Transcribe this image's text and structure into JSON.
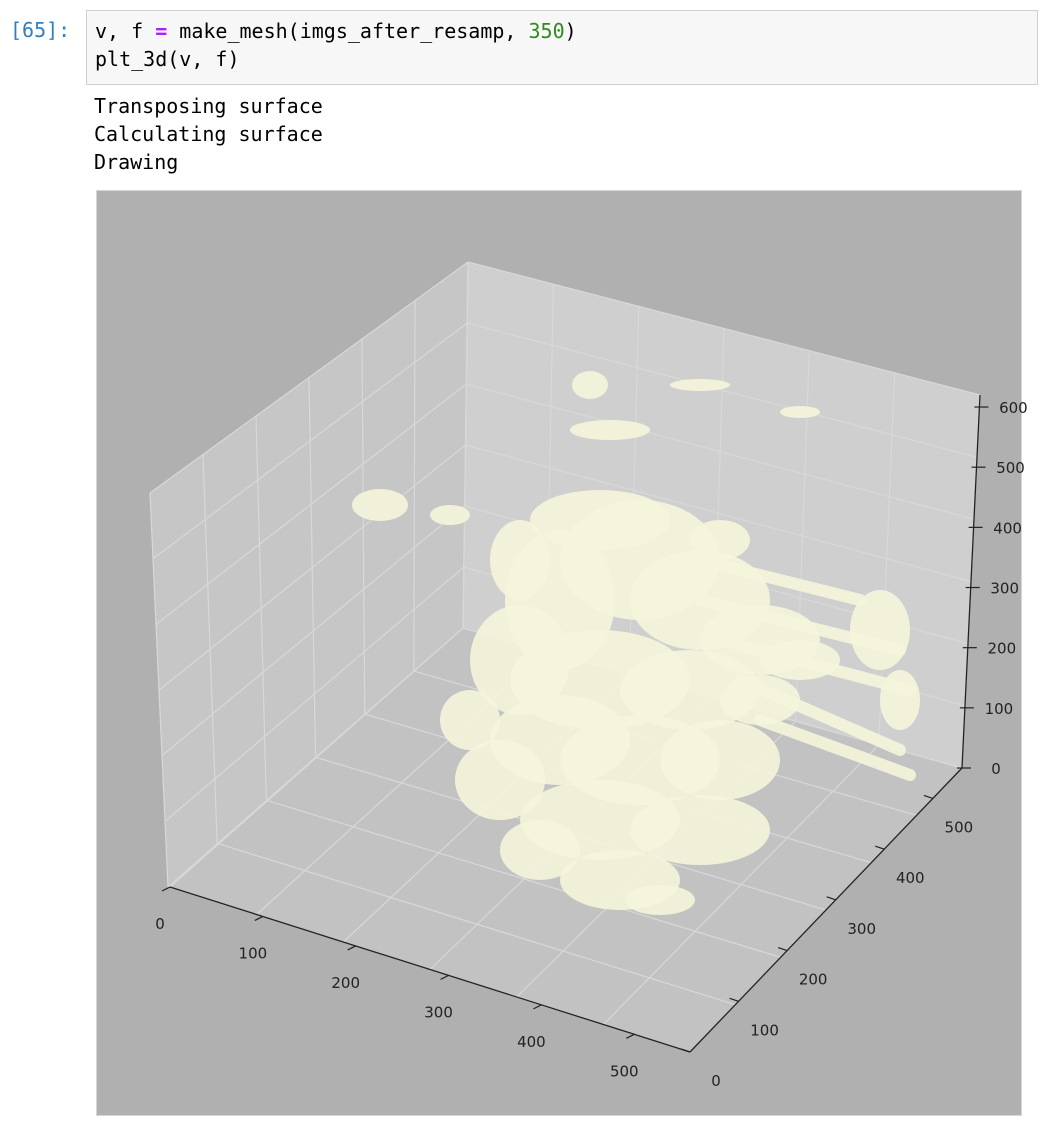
{
  "cell": {
    "prompt": "[65]:",
    "code_line1": {
      "pre": "v, f ",
      "op": "=",
      "mid": " make_mesh(imgs_after_resamp, ",
      "num": "350",
      "post": ")"
    },
    "code_line2": "plt_3d(v, f)"
  },
  "output": {
    "lines": [
      "Transposing surface",
      "Calculating surface",
      "Drawing"
    ]
  },
  "colors": {
    "figure_bg": "#b0b0b0",
    "mesh": "#f5f5dc",
    "prompt": "#307fc1",
    "number_literal": "#2f8a1f",
    "operator": "#aa22ff"
  },
  "chart_data": {
    "type": "surface3d",
    "title": "",
    "x_ticks": [
      "0",
      "100",
      "200",
      "300",
      "400",
      "500"
    ],
    "y_ticks": [
      "0",
      "100",
      "200",
      "300",
      "400",
      "500"
    ],
    "z_ticks": [
      "0",
      "100",
      "200",
      "300",
      "400",
      "500",
      "600"
    ],
    "xlim": [
      0,
      560
    ],
    "ylim": [
      0,
      560
    ],
    "zlim": [
      0,
      620
    ],
    "grid": true,
    "mesh_color": "#f5f5dc"
  }
}
